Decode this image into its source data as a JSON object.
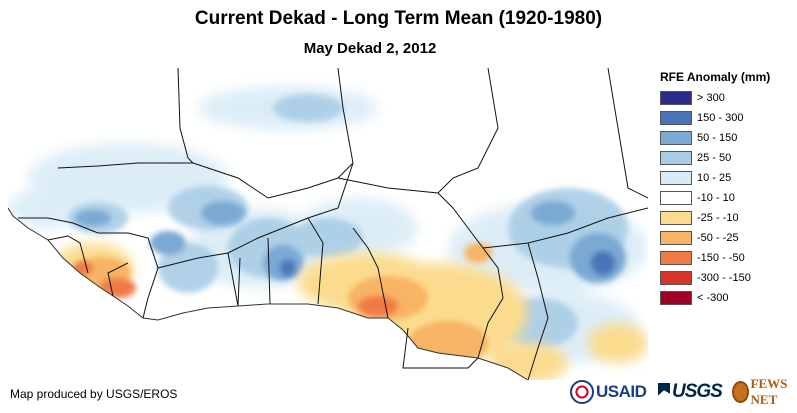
{
  "title": "Current Dekad - Long Term Mean (1920-1980)",
  "subtitle": "May Dekad 2, 2012",
  "legend": {
    "title": "RFE Anomaly (mm)",
    "items": [
      {
        "label": "> 300",
        "color": "#2b2b8c"
      },
      {
        "label": "150 - 300",
        "color": "#4a74b8"
      },
      {
        "label": "50 - 150",
        "color": "#7aa9d3"
      },
      {
        "label": "25 - 50",
        "color": "#a9cde6"
      },
      {
        "label": "10 - 25",
        "color": "#d9ecf6"
      },
      {
        "label": "-10 - 10",
        "color": "#ffffff"
      },
      {
        "label": "-25 - -10",
        "color": "#fbdc8e"
      },
      {
        "label": "-50 - -25",
        "color": "#f8b465"
      },
      {
        "label": "-150 - -50",
        "color": "#f07a44"
      },
      {
        "label": "-300 - -150",
        "color": "#d9342a"
      },
      {
        "label": "< -300",
        "color": "#9e0026"
      }
    ]
  },
  "credit": "Map produced by USGS/EROS",
  "logos": {
    "usaid": "USAID",
    "usgs": "USGS",
    "fews": "FEWS NET"
  }
}
